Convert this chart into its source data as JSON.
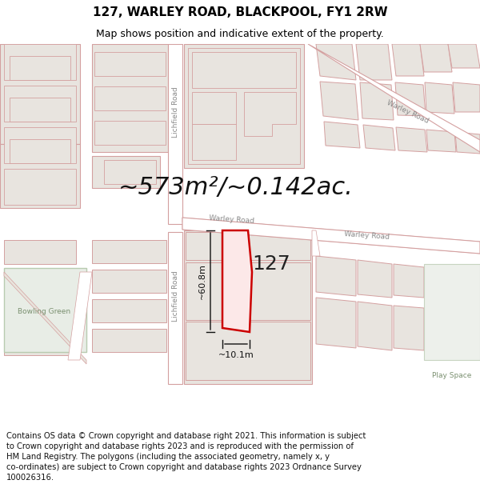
{
  "title": "127, WARLEY ROAD, BLACKPOOL, FY1 2RW",
  "subtitle": "Map shows position and indicative extent of the property.",
  "area_text": "~573m²/~0.142ac.",
  "dim_width": "~10.1m",
  "dim_height": "~60.8m",
  "property_label": "127",
  "footer_text": "Contains OS data © Crown copyright and database right 2021. This information is subject to Crown copyright and database rights 2023 and is reproduced with the permission of HM Land Registry. The polygons (including the associated geometry, namely x, y co-ordinates) are subject to Crown copyright and database rights 2023 Ordnance Survey 100026316.",
  "map_bg": "#f2efeb",
  "block_fill": "#e8e4df",
  "block_stroke": "#d4a0a0",
  "highlight_fill": "#fce8e8",
  "highlight_stroke": "#cc0000",
  "road_fill": "#ffffff",
  "road_stroke": "#d4a0a0",
  "grass_fill": "#e8ede6",
  "grass_stroke": "#c8d8c0",
  "open_fill": "#edf0eb",
  "dim_color": "#111111",
  "label_color": "#888888",
  "road_label_color": "#888888",
  "title_fontsize": 11,
  "subtitle_fontsize": 9,
  "area_fontsize": 22,
  "footer_fontsize": 7.2
}
